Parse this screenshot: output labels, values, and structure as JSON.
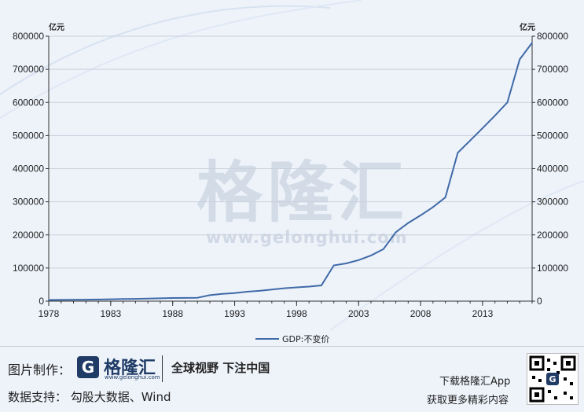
{
  "watermark": {
    "name": "格隆汇",
    "url": "www.gelonghui.com"
  },
  "footer": {
    "made_by_label": "图片制作：",
    "logo_text": "格隆汇",
    "logo_url": "www.gelonghui.com",
    "slogan": "全球视野 下注中国",
    "data_support": "数据支持： 勾股大数据、Wind",
    "download_app": "下载格隆汇App",
    "more_content": "获取更多精彩内容"
  },
  "chart_data": {
    "type": "line",
    "unit_left": "亿元",
    "unit_right": "亿元",
    "x_ticks": [
      "1978",
      "1983",
      "1988",
      "1993",
      "1998",
      "2003",
      "2008",
      "2013"
    ],
    "xlim": [
      1978,
      2017
    ],
    "y_ticks": [
      "0",
      "100000",
      "200000",
      "300000",
      "400000",
      "500000",
      "600000",
      "700000",
      "800000"
    ],
    "ylim": [
      0,
      800000
    ],
    "grid": true,
    "legend_position": "bottom",
    "series_color": "#3f6aa8",
    "series": [
      {
        "name": "GDP:不变价",
        "x": [
          1978,
          1979,
          1980,
          1981,
          1982,
          1983,
          1984,
          1985,
          1986,
          1987,
          1988,
          1989,
          1990,
          1991,
          1992,
          1993,
          1994,
          1995,
          1996,
          1997,
          1998,
          1999,
          2000,
          2001,
          2002,
          2003,
          2004,
          2005,
          2006,
          2007,
          2008,
          2009,
          2010,
          2011,
          2012,
          2013,
          2014,
          2015,
          2016,
          2017
        ],
        "values": [
          3600,
          3900,
          4300,
          4600,
          5100,
          5600,
          6500,
          7000,
          7600,
          8500,
          9400,
          9800,
          10300,
          18000,
          22000,
          24500,
          28500,
          31000,
          35000,
          39000,
          41500,
          44000,
          47500,
          108000,
          114000,
          124000,
          138000,
          157000,
          208000,
          236000,
          259000,
          284000,
          313000,
          448000,
          485000,
          522000,
          560000,
          600000,
          730000,
          780000
        ]
      }
    ]
  }
}
